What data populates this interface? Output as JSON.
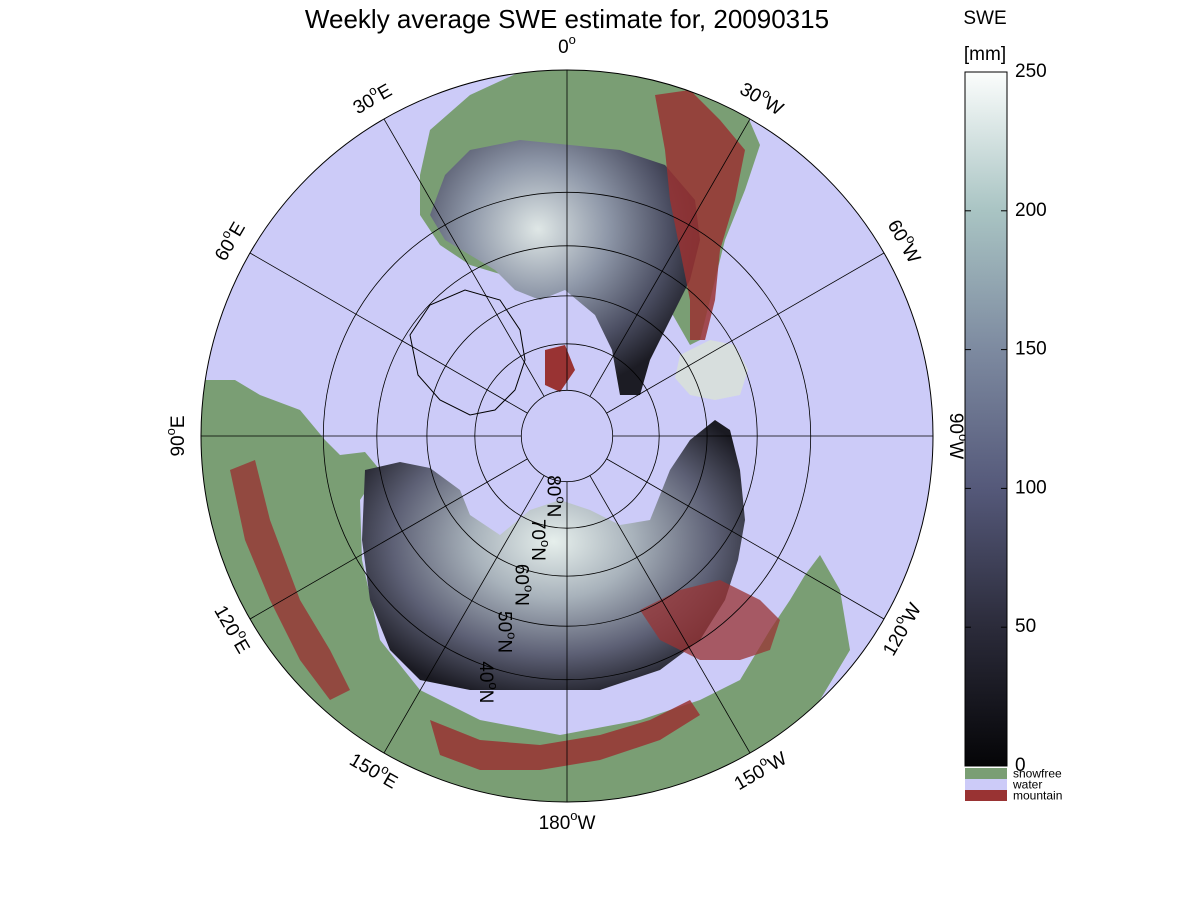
{
  "title": "Weekly average SWE estimate for, 20090315",
  "map": {
    "projection": "north-polar-stereographic",
    "longitude_labels": [
      {
        "base": "90",
        "sup": "o",
        "hem": "W",
        "lon": -90
      },
      {
        "base": "120",
        "sup": "o",
        "hem": "W",
        "lon": -120
      },
      {
        "base": "150",
        "sup": "o",
        "hem": "W",
        "lon": -150
      },
      {
        "base": "180",
        "sup": "o",
        "hem": "W",
        "lon": 180
      },
      {
        "base": "150",
        "sup": "o",
        "hem": "E",
        "lon": 150
      },
      {
        "base": "120",
        "sup": "o",
        "hem": "E",
        "lon": 120
      },
      {
        "base": "90",
        "sup": "o",
        "hem": "E",
        "lon": 90
      },
      {
        "base": "60",
        "sup": "o",
        "hem": "E",
        "lon": 60
      },
      {
        "base": "30",
        "sup": "o",
        "hem": "E",
        "lon": 30
      },
      {
        "base": "0",
        "sup": "o",
        "hem": "",
        "lon": 0
      },
      {
        "base": "30",
        "sup": "o",
        "hem": "W",
        "lon": -30
      },
      {
        "base": "60",
        "sup": "o",
        "hem": "W",
        "lon": -60
      }
    ],
    "latitude_labels": [
      {
        "base": "80",
        "sup": "o",
        "hem": "N",
        "lat": 80
      },
      {
        "base": "70",
        "sup": "o",
        "hem": "N",
        "lat": 70
      },
      {
        "base": "60",
        "sup": "o",
        "hem": "N",
        "lat": 60
      },
      {
        "base": "50",
        "sup": "o",
        "hem": "N",
        "lat": 50
      },
      {
        "base": "40",
        "sup": "o",
        "hem": "N",
        "lat": 40
      }
    ]
  },
  "colorbar": {
    "title_line1": "SWE",
    "title_line2": "[mm]",
    "ticks": [
      "0",
      "50",
      "100",
      "150",
      "200",
      "250"
    ],
    "tick_values": [
      0,
      50,
      100,
      150,
      200,
      250
    ],
    "range": [
      0,
      250
    ],
    "categories": [
      {
        "label": "snowfree",
        "color": "#7a9e74"
      },
      {
        "label": "water",
        "color": "#cccbf8"
      },
      {
        "label": "mountain",
        "color": "#993333"
      }
    ]
  },
  "colors": {
    "water": "#cccbf8",
    "snowfree": "#7a9e74",
    "mountain": "#993333",
    "swe_low": "#0c0c10",
    "swe_mid": "#6e7494",
    "swe_high": "#f2f7f5"
  }
}
